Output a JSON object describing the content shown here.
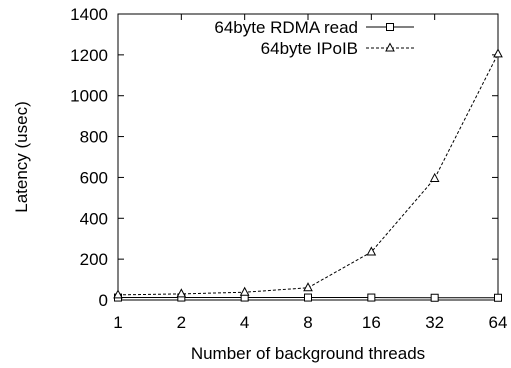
{
  "chart_data": {
    "type": "line",
    "xlabel": "Number of background threads",
    "ylabel": "Latency (usec)",
    "x": [
      "1",
      "2",
      "4",
      "8",
      "16",
      "32",
      "64"
    ],
    "ylim": [
      0,
      1400
    ],
    "yticks": [
      "0",
      "200",
      "400",
      "600",
      "800",
      "1000",
      "1200",
      "1400"
    ],
    "grid": false,
    "legend_position": "top-right",
    "series": [
      {
        "name": "64byte RDMA read",
        "values": [
          12,
          12,
          12,
          12,
          12,
          11,
          11
        ],
        "marker": "square",
        "line_style": "solid",
        "color": "#000000"
      },
      {
        "name": "64byte IPoIB",
        "values": [
          25,
          30,
          38,
          60,
          235,
          595,
          1205
        ],
        "marker": "triangle",
        "line_style": "dashed",
        "color": "#000000"
      }
    ]
  }
}
